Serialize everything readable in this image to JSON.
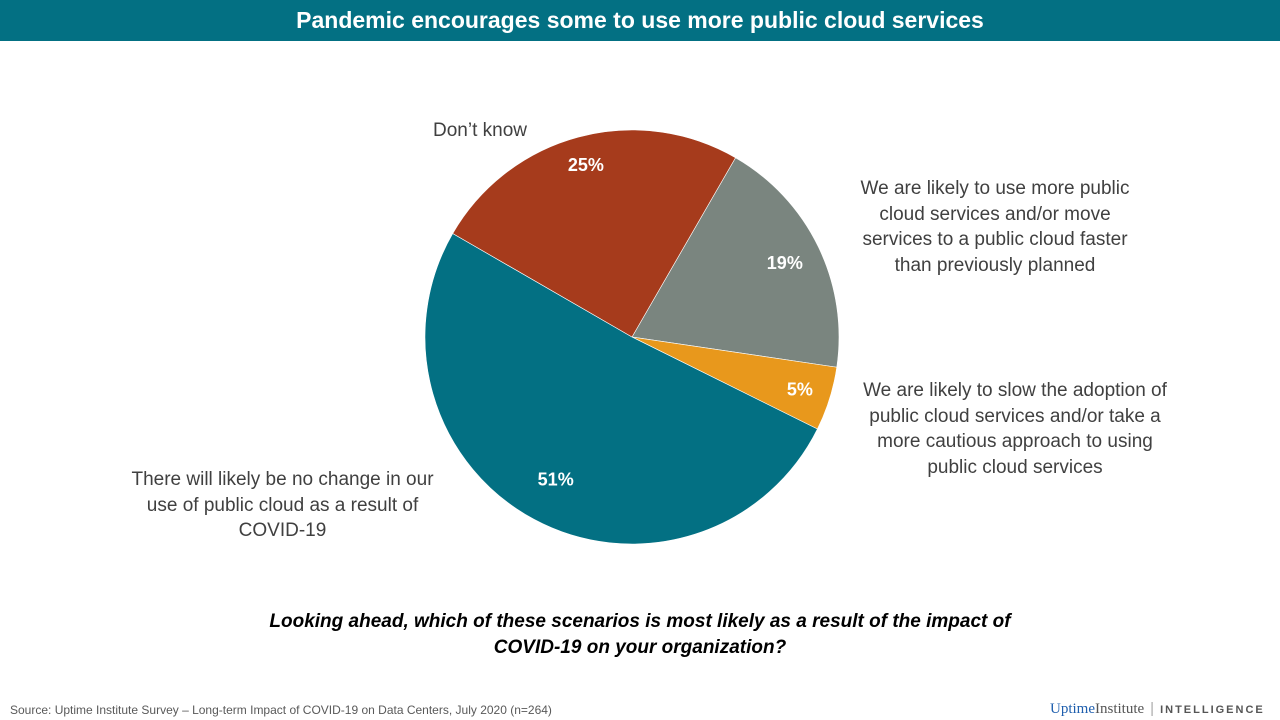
{
  "header": {
    "title": "Pandemic encourages some to use more public cloud services"
  },
  "chart_data": {
    "type": "pie",
    "title": "Pandemic encourages some to use more public cloud services",
    "start_angle_deg": 30,
    "slices": [
      {
        "label": "We are likely to use more public cloud services and/or move services to a public cloud faster than previously planned",
        "value": 19,
        "value_label": "19%",
        "color": "#7a857f"
      },
      {
        "label": "We are likely to slow the adoption of public cloud services and/or take a more cautious approach to using public cloud services",
        "value": 5,
        "value_label": "5%",
        "color": "#e8981c"
      },
      {
        "label": "There will likely be no change in our use of public cloud as a result of COVID-19",
        "value": 51,
        "value_label": "51%",
        "color": "#037083"
      },
      {
        "label": "Don’t know",
        "value": 25,
        "value_label": "25%",
        "color": "#a63b1c"
      }
    ]
  },
  "labels": {
    "more": [
      "We are likely to use more public",
      "cloud services and/or move",
      "services to a public cloud faster",
      "than previously planned"
    ],
    "slow": [
      "We are likely to slow the adoption of",
      "public cloud services and/or take a",
      "more cautious approach to using",
      "public cloud services"
    ],
    "nochange": [
      "There will likely be no change in our",
      "use of public cloud as a result of",
      "COVID-19"
    ],
    "dontknow": "Don’t know"
  },
  "question": [
    "Looking ahead, which of these scenarios is most likely as a result of the impact of",
    "COVID-19  on your organization?"
  ],
  "footer": {
    "source": "Source: Uptime Institute Survey – Long-term Impact of COVID-19 on Data Centers, July 2020 (n=264)",
    "logo_uptime": "Uptime",
    "logo_institute": "Institute",
    "logo_intel": "INTELLIGENCE"
  }
}
